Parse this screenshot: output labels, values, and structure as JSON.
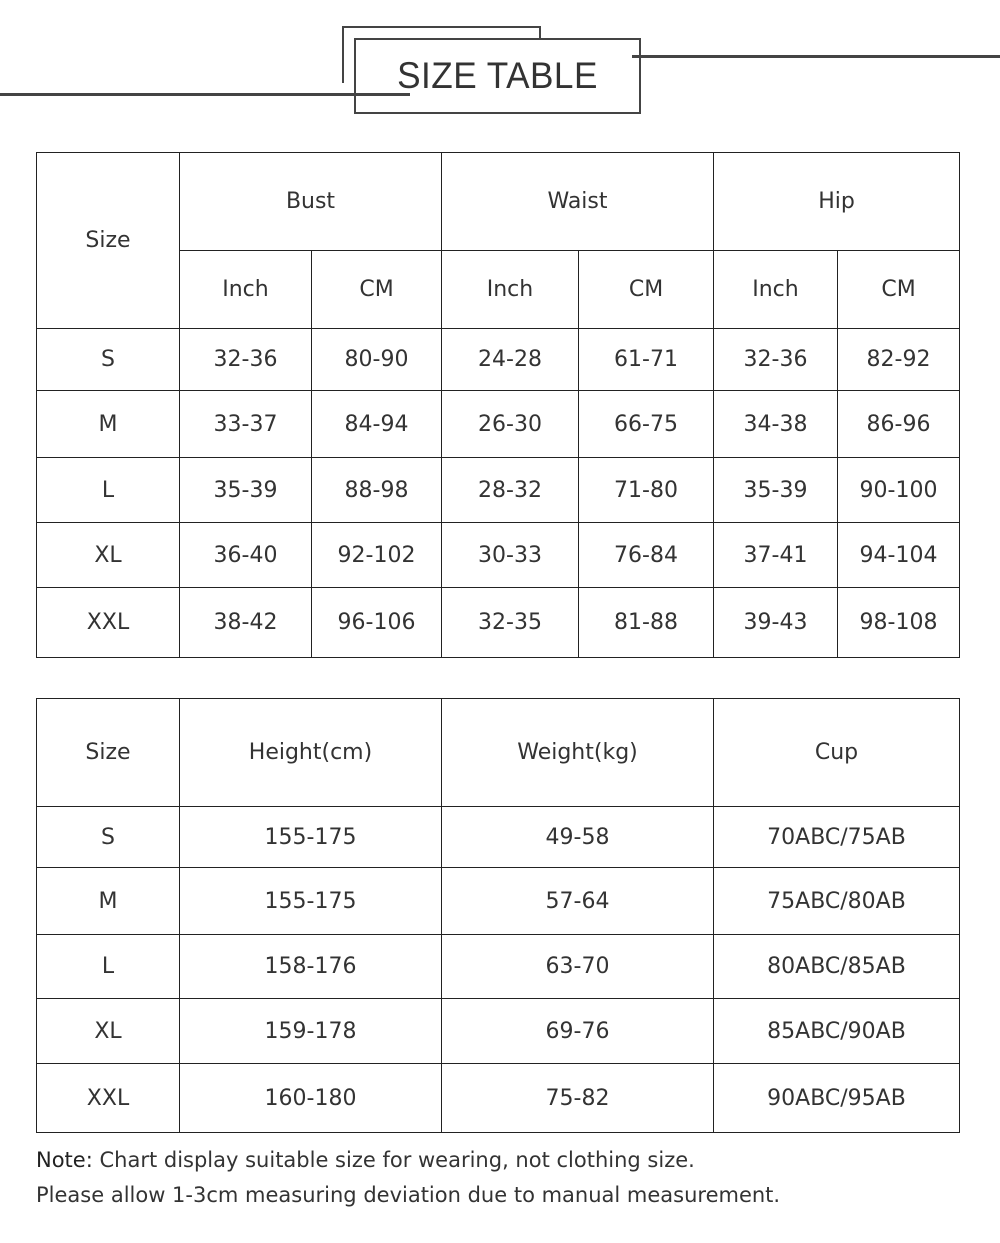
{
  "title": "SIZE TABLE",
  "table1": {
    "size_label": "Size",
    "groups": [
      "Bust",
      "Waist",
      "Hip"
    ],
    "units": [
      "Inch",
      "CM",
      "Inch",
      "CM",
      "Inch",
      "CM"
    ],
    "rows": [
      {
        "size": "S",
        "values": [
          "32-36",
          "80-90",
          "24-28",
          "61-71",
          "32-36",
          "82-92"
        ]
      },
      {
        "size": "M",
        "values": [
          "33-37",
          "84-94",
          "26-30",
          "66-75",
          "34-38",
          "86-96"
        ]
      },
      {
        "size": "L",
        "values": [
          "35-39",
          "88-98",
          "28-32",
          "71-80",
          "35-39",
          "90-100"
        ]
      },
      {
        "size": "XL",
        "values": [
          "36-40",
          "92-102",
          "30-33",
          "76-84",
          "37-41",
          "94-104"
        ]
      },
      {
        "size": "XXL",
        "values": [
          "38-42",
          "96-106",
          "32-35",
          "81-88",
          "39-43",
          "98-108"
        ]
      }
    ]
  },
  "table2": {
    "headers": [
      "Size",
      "Height(cm)",
      "Weight(kg)",
      "Cup"
    ],
    "rows": [
      [
        "S",
        "155-175",
        "49-58",
        "70ABC/75AB"
      ],
      [
        "M",
        "155-175",
        "57-64",
        "75ABC/80AB"
      ],
      [
        "L",
        "158-176",
        "63-70",
        "80ABC/85AB"
      ],
      [
        "XL",
        "159-178",
        "69-76",
        "85ABC/90AB"
      ],
      [
        "XXL",
        "160-180",
        "75-82",
        "90ABC/95AB"
      ]
    ]
  },
  "note": {
    "label": "Note:",
    "line1": "Chart display suitable size for wearing, not clothing size.",
    "line2": "Please allow 1-3cm measuring deviation due to manual measurement."
  }
}
